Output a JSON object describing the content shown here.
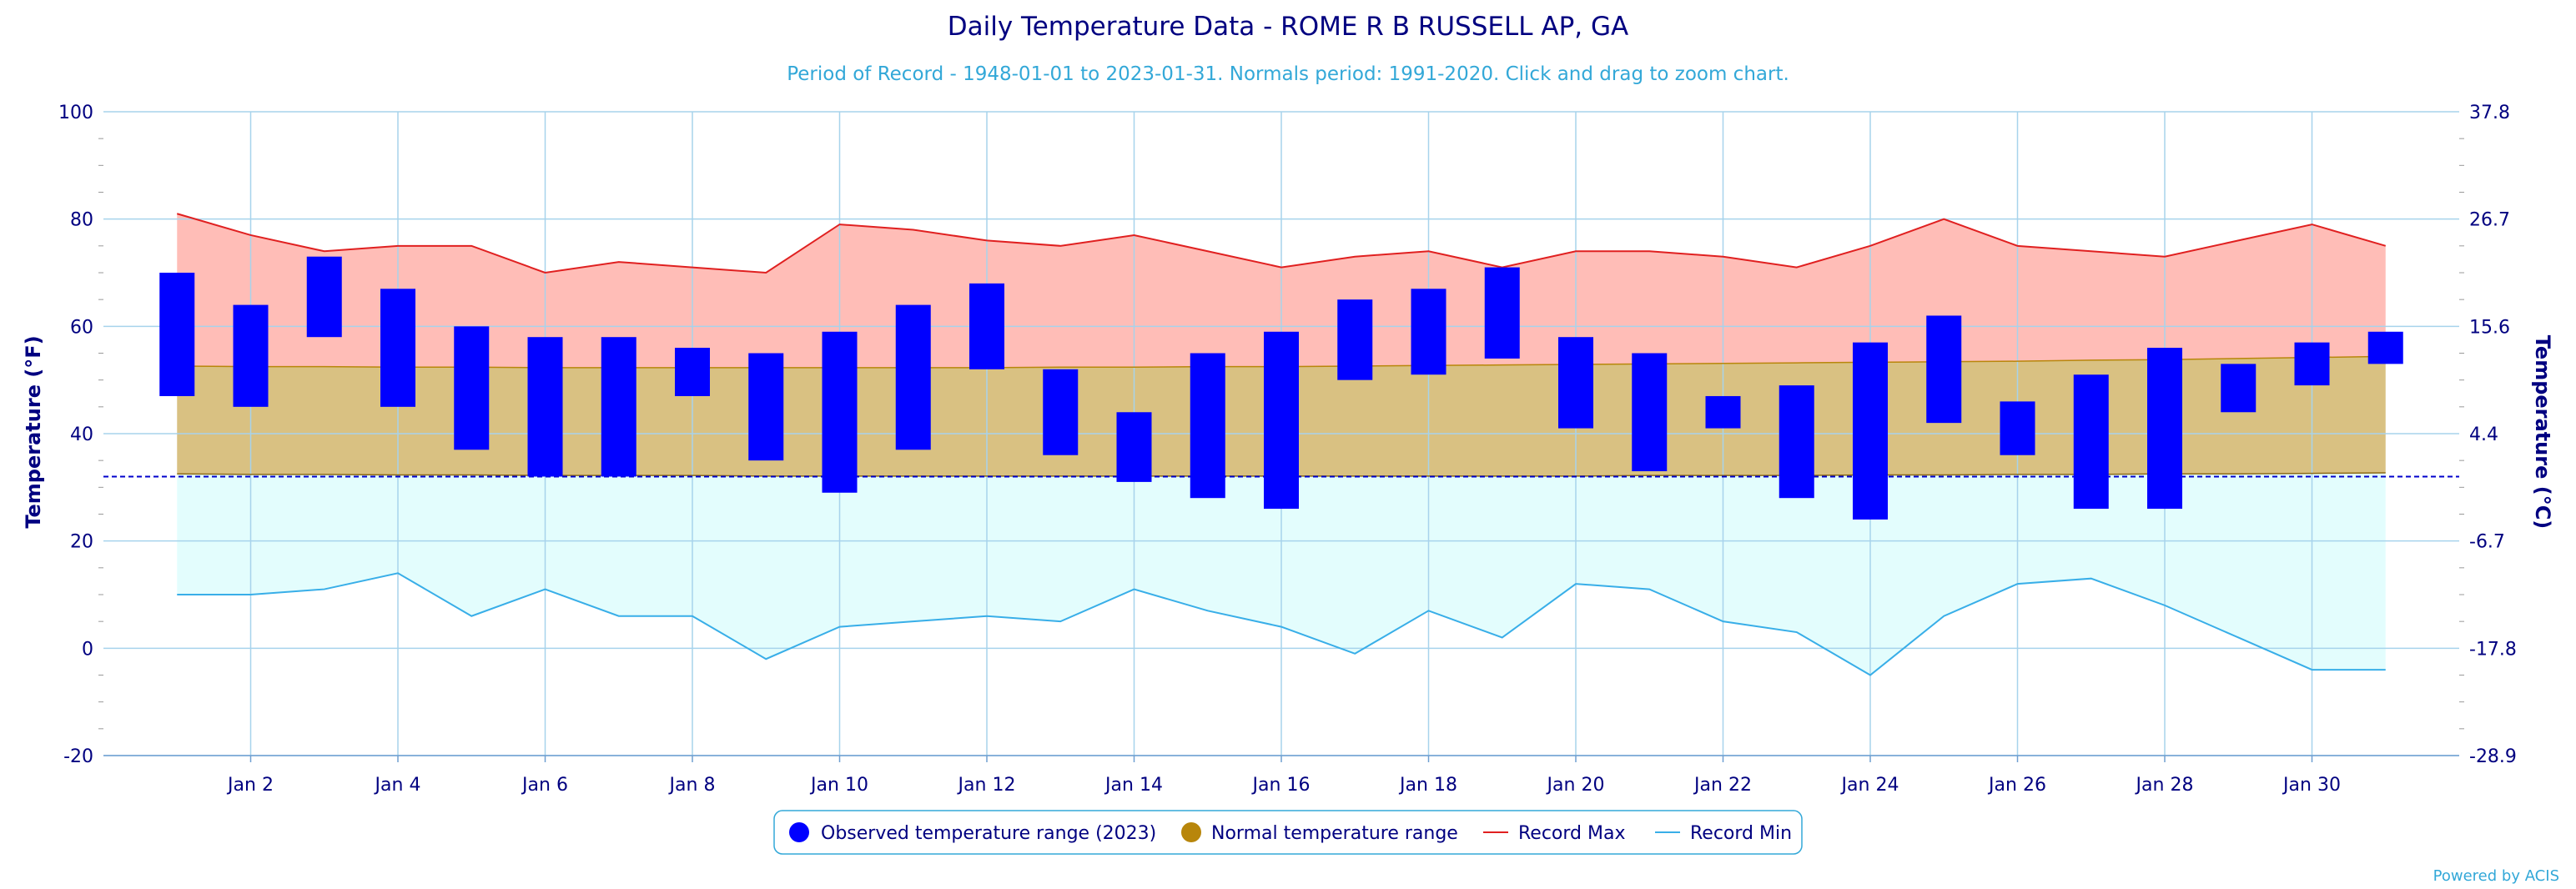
{
  "colors": {
    "title": "#000080",
    "subtitle": "#33a8d8",
    "grid": "#a7d3ec",
    "observed": "#0000ff",
    "normal_fill": "#d9c182",
    "record_max_fill": "#ffbdb7",
    "record_max_line": "#e02020",
    "record_min_fill": "#e3fdfd",
    "record_min_line": "#38aee8",
    "freezing_line": "#0000cc",
    "legend_border": "#33a8d8"
  },
  "chart_data": {
    "type": "range-bar",
    "title": "Daily Temperature Data - ROME R B RUSSELL AP, GA",
    "subtitle": "Period of Record - 1948-01-01 to 2023-01-31. Normals period: 1991-2020. Click and drag to zoom chart.",
    "ylabel": "Temperature (°F)",
    "ylabel_right": "Temperature (°C)",
    "ylim": [
      -20,
      100
    ],
    "y_ticks": [
      -20,
      0,
      20,
      40,
      60,
      80,
      100
    ],
    "y_ticks_right": [
      "-28.9",
      "-17.8",
      "-6.7",
      "4.4",
      "15.6",
      "26.7",
      "37.8"
    ],
    "x_ticks": [
      {
        "day": 2,
        "label": "Jan 2"
      },
      {
        "day": 4,
        "label": "Jan 4"
      },
      {
        "day": 6,
        "label": "Jan 6"
      },
      {
        "day": 8,
        "label": "Jan 8"
      },
      {
        "day": 10,
        "label": "Jan 10"
      },
      {
        "day": 12,
        "label": "Jan 12"
      },
      {
        "day": 14,
        "label": "Jan 14"
      },
      {
        "day": 16,
        "label": "Jan 16"
      },
      {
        "day": 18,
        "label": "Jan 18"
      },
      {
        "day": 20,
        "label": "Jan 20"
      },
      {
        "day": 22,
        "label": "Jan 22"
      },
      {
        "day": 24,
        "label": "Jan 24"
      },
      {
        "day": 26,
        "label": "Jan 26"
      },
      {
        "day": 28,
        "label": "Jan 28"
      },
      {
        "day": 30,
        "label": "Jan 30"
      }
    ],
    "days": [
      1,
      2,
      3,
      4,
      5,
      6,
      7,
      8,
      9,
      10,
      11,
      12,
      13,
      14,
      15,
      16,
      17,
      18,
      19,
      20,
      21,
      22,
      23,
      24,
      25,
      26,
      27,
      28,
      29,
      30,
      31
    ],
    "freezing_line": 32,
    "series": [
      {
        "name": "Observed temperature range (2023)",
        "low": [
          47,
          45,
          58,
          45,
          37,
          32,
          32,
          47,
          35,
          29,
          37,
          52,
          36,
          31,
          28,
          26,
          50,
          51,
          54,
          41,
          33,
          41,
          28,
          24,
          42,
          36,
          26,
          26,
          44,
          49,
          53
        ],
        "high": [
          70,
          64,
          73,
          67,
          60,
          58,
          58,
          56,
          55,
          59,
          64,
          68,
          52,
          44,
          55,
          59,
          65,
          67,
          71,
          58,
          55,
          47,
          49,
          57,
          62,
          46,
          51,
          56,
          53,
          57,
          59
        ]
      },
      {
        "name": "Normal temperature range",
        "low": [
          32.5,
          32.4,
          32.4,
          32.3,
          32.3,
          32.2,
          32.2,
          32.2,
          32.1,
          32.1,
          32.1,
          32.1,
          32.1,
          32.1,
          32.1,
          32.1,
          32.1,
          32.1,
          32.1,
          32.1,
          32.2,
          32.2,
          32.2,
          32.3,
          32.3,
          32.4,
          32.4,
          32.5,
          32.5,
          32.6,
          32.7
        ],
        "high": [
          52.6,
          52.5,
          52.5,
          52.4,
          52.4,
          52.3,
          52.3,
          52.3,
          52.3,
          52.3,
          52.3,
          52.3,
          52.4,
          52.4,
          52.5,
          52.5,
          52.6,
          52.7,
          52.8,
          52.9,
          53.0,
          53.1,
          53.2,
          53.3,
          53.4,
          53.5,
          53.7,
          53.8,
          54.0,
          54.2,
          54.4
        ]
      },
      {
        "name": "Record Max",
        "values": [
          81,
          77,
          74,
          75,
          75,
          70,
          72,
          71,
          70,
          79,
          78,
          76,
          75,
          77,
          74,
          71,
          73,
          74,
          71,
          74,
          74,
          73,
          71,
          75,
          80,
          75,
          74,
          73,
          76,
          79,
          75
        ]
      },
      {
        "name": "Record Min",
        "values": [
          10,
          10,
          11,
          14,
          6,
          11,
          6,
          6,
          -2,
          4,
          5,
          6,
          5,
          11,
          7,
          4,
          -1,
          7,
          2,
          12,
          11,
          5,
          3,
          -5,
          6,
          12,
          13,
          8,
          2,
          -4,
          -4
        ]
      }
    ],
    "legend_position": "bottom-center",
    "credits": "Powered by ACIS"
  }
}
